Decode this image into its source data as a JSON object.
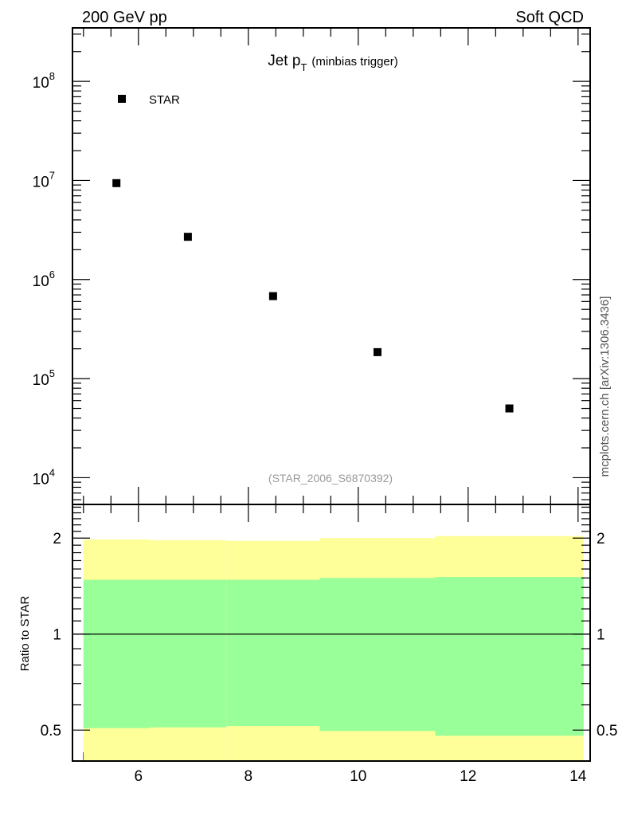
{
  "header": {
    "left": "200 GeV pp",
    "right": "Soft QCD"
  },
  "side_label": "mcplots.cern.ch [arXiv:1306.3436]",
  "chart_data": [
    {
      "type": "scatter",
      "title_main": "Jet p",
      "title_sub": "T",
      "title_extra": "(minbias trigger)",
      "analysis_label": "(STAR_2006_S6870392)",
      "legend": [
        {
          "name": "STAR",
          "marker": "square",
          "color": "#000000"
        }
      ],
      "xlim": [
        4.8,
        14.22
      ],
      "ylim_log10": [
        3.73,
        8.54
      ],
      "y_scale": "log",
      "y_ticks": [
        {
          "value": 4,
          "label": "10",
          "exp": "4"
        },
        {
          "value": 5,
          "label": "10",
          "exp": "5"
        },
        {
          "value": 6,
          "label": "10",
          "exp": "6"
        },
        {
          "value": 7,
          "label": "10",
          "exp": "7"
        },
        {
          "value": 8,
          "label": "10",
          "exp": "8"
        }
      ],
      "series": [
        {
          "name": "STAR",
          "x": [
            5.6,
            6.9,
            8.45,
            10.35,
            12.75
          ],
          "y": [
            9400000.0,
            2700000.0,
            680000.0,
            185000.0,
            50000.0
          ]
        }
      ]
    },
    {
      "type": "area",
      "ylabel": "Ratio to STAR",
      "xlim": [
        4.8,
        14.22
      ],
      "ylim": [
        0.4,
        2.55
      ],
      "y_scale": "log",
      "x_ticks": [
        {
          "value": 6,
          "label": "6"
        },
        {
          "value": 8,
          "label": "8"
        },
        {
          "value": 10,
          "label": "10"
        },
        {
          "value": 12,
          "label": "12"
        },
        {
          "value": 14,
          "label": "14"
        }
      ],
      "y_ticks": [
        {
          "value": 0.5,
          "label": "0.5"
        },
        {
          "value": 1,
          "label": "1"
        },
        {
          "value": 2,
          "label": "2"
        }
      ],
      "bin_edges": [
        5.0,
        6.2,
        7.6,
        9.3,
        11.4,
        14.1
      ],
      "stat_band": {
        "color": "#99ff99",
        "low": [
          0.507,
          0.51,
          0.515,
          0.497,
          0.48
        ],
        "high": [
          1.48,
          1.48,
          1.48,
          1.5,
          1.51
        ]
      },
      "total_band": {
        "color": "#ffff99",
        "low": [
          0.3,
          0.3,
          0.3,
          0.3,
          0.3
        ],
        "high": [
          1.98,
          1.97,
          1.96,
          2.0,
          2.03
        ]
      },
      "reference_line": 1
    }
  ]
}
